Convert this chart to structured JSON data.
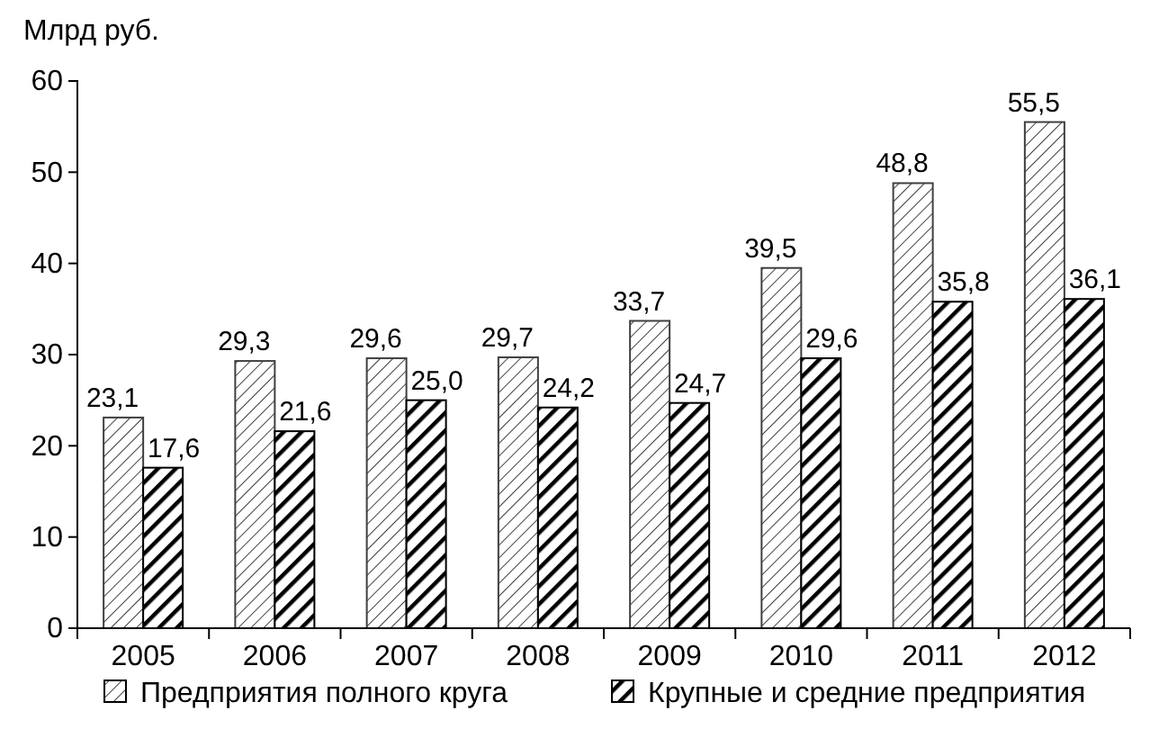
{
  "chart_data": {
    "type": "bar",
    "ylabel": "Млрд руб.",
    "categories": [
      "2005",
      "2006",
      "2007",
      "2008",
      "2009",
      "2010",
      "2011",
      "2012"
    ],
    "ylim": [
      0,
      60
    ],
    "yticks": [
      0,
      10,
      20,
      30,
      40,
      50,
      60
    ],
    "grid": false,
    "legend": "bottom",
    "series": [
      {
        "name": "Предприятия полного круга",
        "color": "#404040",
        "values": [
          23.1,
          29.3,
          29.6,
          29.7,
          33.7,
          39.5,
          48.8,
          55.5
        ],
        "value_labels": [
          "23,1",
          "29,3",
          "29,6",
          "29,7",
          "33,7",
          "39,5",
          "48,8",
          "55,5"
        ]
      },
      {
        "name": "Крупные и средние предприятия",
        "color": "#000000",
        "values": [
          17.6,
          21.6,
          25.0,
          24.2,
          24.7,
          29.6,
          35.8,
          36.1
        ],
        "value_labels": [
          "17,6",
          "21,6",
          "25,0",
          "24,2",
          "24,7",
          "29,6",
          "35,8",
          "36,1"
        ]
      }
    ]
  }
}
